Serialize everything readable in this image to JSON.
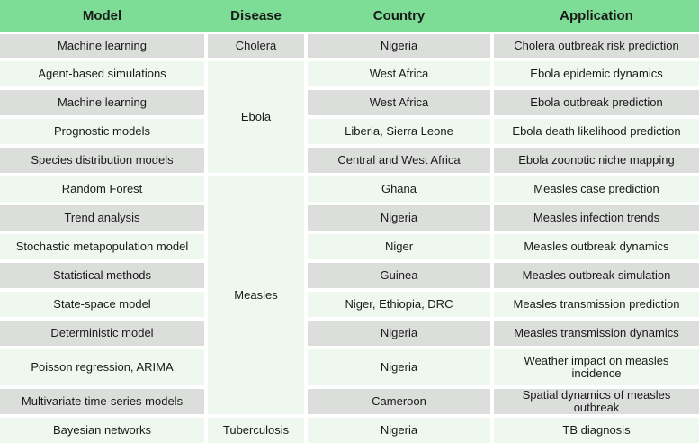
{
  "columns": [
    "Model",
    "Disease",
    "Country",
    "Application"
  ],
  "rows": [
    {
      "model": "Machine learning",
      "country": "Nigeria",
      "application": "Cholera outbreak risk prediction"
    },
    {
      "model": "Agent-based simulations",
      "country": "West Africa",
      "application": "Ebola epidemic dynamics"
    },
    {
      "model": "Machine learning",
      "country": "West Africa",
      "application": "Ebola outbreak prediction"
    },
    {
      "model": "Prognostic models",
      "country": "Liberia, Sierra Leone",
      "application": "Ebola death likelihood prediction"
    },
    {
      "model": "Species distribution models",
      "country": "Central and West Africa",
      "application": "Ebola zoonotic niche mapping"
    },
    {
      "model": "Random Forest",
      "country": "Ghana",
      "application": "Measles case prediction"
    },
    {
      "model": "Trend analysis",
      "country": "Nigeria",
      "application": "Measles infection trends"
    },
    {
      "model": "Stochastic metapopulation model",
      "country": "Niger",
      "application": "Measles outbreak dynamics"
    },
    {
      "model": "Statistical methods",
      "country": "Guinea",
      "application": "Measles outbreak simulation"
    },
    {
      "model": "State-space model",
      "country": "Niger, Ethiopia, DRC",
      "application": "Measles transmission prediction"
    },
    {
      "model": "Deterministic model",
      "country": "Nigeria",
      "application": "Measles transmission dynamics"
    },
    {
      "model": "Poisson regression, ARIMA",
      "country": "Nigeria",
      "application": "Weather impact on measles incidence"
    },
    {
      "model": "Multivariate time-series models",
      "country": "Cameroon",
      "application": "Spatial dynamics of measles outbreak"
    },
    {
      "model": "Bayesian networks",
      "country": "Nigeria",
      "application": "TB diagnosis"
    }
  ],
  "diseases": [
    {
      "label": "Cholera",
      "tone": "gray"
    },
    {
      "label": "Ebola",
      "tone": "mint"
    },
    {
      "label": "Measles",
      "tone": "mint"
    },
    {
      "label": "Tuberculosis",
      "tone": "mint"
    }
  ],
  "colors": {
    "header": "#7ddc95",
    "row_gray": "#dcdedc",
    "row_mint": "#eef8ee"
  }
}
